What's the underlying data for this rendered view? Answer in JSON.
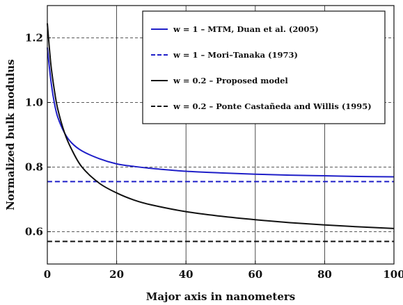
{
  "chart_data": {
    "type": "line",
    "xlabel": "Major axis in nanometers",
    "ylabel": "Normalized bulk modulus",
    "xlim": [
      0,
      100
    ],
    "ylim": [
      0.5,
      1.3
    ],
    "x_ticks": [
      0,
      20,
      40,
      60,
      80,
      100
    ],
    "x_tick_labels": [
      "0",
      "20",
      "40",
      "60",
      "80",
      "100"
    ],
    "y_ticks": [
      0.6,
      0.8,
      1.0,
      1.2
    ],
    "y_tick_labels": [
      "0.6",
      "0.8",
      "1.0",
      "1.2"
    ],
    "grid": {
      "vertical": "solid",
      "horizontal": "dashed"
    },
    "legend_position": "top-right",
    "series": [
      {
        "name": "w = 1 – MTM, Duan et al. (2005)",
        "color": "#1f1fc8",
        "style": "solid",
        "x": [
          0,
          1,
          2,
          3,
          5,
          7,
          10,
          15,
          20,
          25,
          30,
          40,
          50,
          60,
          70,
          80,
          90,
          100
        ],
        "y": [
          1.17,
          1.07,
          1.0,
          0.955,
          0.905,
          0.875,
          0.85,
          0.826,
          0.81,
          0.802,
          0.796,
          0.787,
          0.782,
          0.778,
          0.775,
          0.773,
          0.771,
          0.77
        ]
      },
      {
        "name": "w = 1 – Mori–Tanaka (1973)",
        "color": "#1f1fc8",
        "style": "dashed",
        "x": [
          0,
          100
        ],
        "y": [
          0.755,
          0.755
        ]
      },
      {
        "name": "w = 0.2 – Proposed model",
        "color": "#111111",
        "style": "solid",
        "x": [
          0,
          1,
          2,
          3,
          5,
          7,
          10,
          15,
          20,
          25,
          30,
          40,
          50,
          60,
          70,
          80,
          90,
          100
        ],
        "y": [
          1.245,
          1.12,
          1.04,
          0.98,
          0.905,
          0.855,
          0.8,
          0.75,
          0.72,
          0.698,
          0.683,
          0.662,
          0.648,
          0.637,
          0.628,
          0.621,
          0.615,
          0.61
        ]
      },
      {
        "name": "w = 0.2 – Ponte Castañeda and Willis (1995)",
        "color": "#111111",
        "style": "dashed",
        "x": [
          0,
          100
        ],
        "y": [
          0.57,
          0.57
        ]
      }
    ]
  }
}
